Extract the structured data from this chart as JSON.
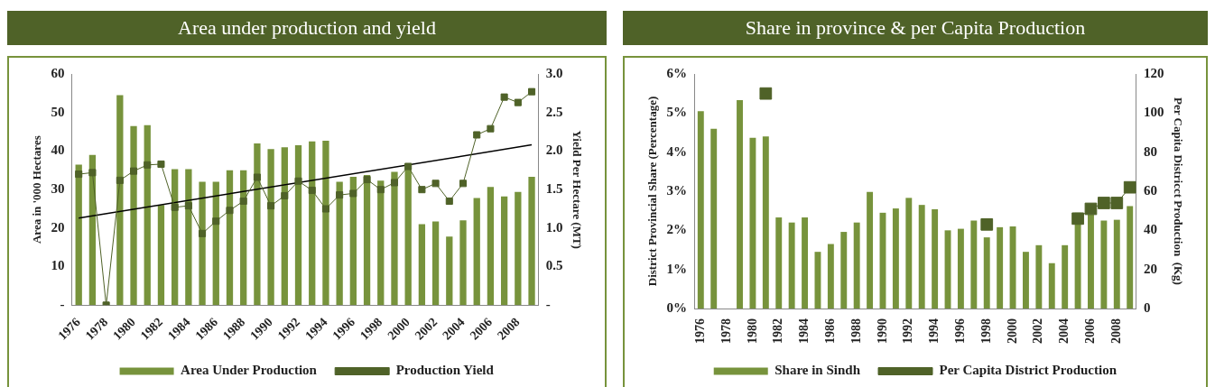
{
  "chart_data": [
    {
      "type": "bar",
      "title": "Area under production and yield",
      "ylabel": "Area in '000 Hectares",
      "y2label": "Yield Per Hectare (MT)",
      "categories": [
        "1976",
        null,
        "1978",
        null,
        "1980",
        null,
        "1982",
        null,
        "1984",
        null,
        "1986",
        null,
        "1988",
        null,
        "1990",
        null,
        "1992",
        null,
        "1994",
        null,
        "1996",
        null,
        "1998",
        null,
        "2000",
        null,
        "2002",
        null,
        "2004",
        null,
        "2006",
        null,
        "2008",
        null
      ],
      "series": [
        {
          "name": "Area Under Production",
          "color": "#77933c",
          "values": [
            36.5,
            39,
            null,
            54.5,
            46.5,
            46.7,
            26,
            35.3,
            35.3,
            32,
            32,
            35,
            35,
            42,
            40.5,
            41,
            41.5,
            42.5,
            42.7,
            32,
            33.3,
            33.8,
            32.3,
            34.6,
            35.5,
            21,
            21.7,
            17.8,
            22,
            27.8,
            30.7,
            28.2,
            29.4,
            33.3
          ]
        },
        {
          "name": "Production Yield",
          "type": "line",
          "axis": "y2",
          "color": "#4f6228",
          "marker": "square",
          "values": [
            1.7,
            1.72,
            0,
            1.62,
            1.74,
            1.82,
            1.83,
            1.27,
            1.29,
            0.93,
            1.09,
            1.23,
            1.35,
            1.66,
            1.29,
            1.42,
            1.61,
            1.49,
            1.25,
            1.43,
            1.45,
            1.63,
            1.5,
            1.59,
            1.8,
            1.5,
            1.58,
            1.35,
            1.58,
            2.21,
            2.29,
            2.7,
            2.63,
            2.77
          ]
        },
        {
          "type": "line",
          "axis": "y2",
          "color": "#000000",
          "marker": "none",
          "values": [
            1.13,
            null,
            null,
            null,
            null,
            null,
            null,
            null,
            null,
            null,
            null,
            null,
            null,
            null,
            null,
            null,
            null,
            null,
            null,
            null,
            null,
            null,
            null,
            null,
            null,
            null,
            null,
            null,
            null,
            null,
            null,
            null,
            null,
            2.08
          ]
        }
      ],
      "ylim": [
        0,
        60
      ],
      "yticks": [
        {
          "value": 0,
          "label": "-"
        },
        10,
        20,
        30,
        40,
        50,
        60
      ],
      "y2lim": [
        0,
        3
      ],
      "y2ticks": [
        {
          "value": 0,
          "label": "-"
        },
        0.5,
        {
          "value": 1,
          "label": "1.0"
        },
        1.5,
        {
          "value": 2,
          "label": "2.0"
        },
        2.5,
        {
          "value": 3,
          "label": "3.0"
        }
      ],
      "legend": "bottom",
      "grid": false
    },
    {
      "type": "bar",
      "title": "Share in province & per Capita Production",
      "ylabel": "District Provincial Share (Percentage)",
      "y2label": "Per Capita Districct Production  (Kg)",
      "categories": [
        "1976",
        null,
        "1978",
        null,
        "1980",
        null,
        "1982",
        null,
        "1984",
        null,
        "1986",
        null,
        "1988",
        null,
        "1990",
        null,
        "1992",
        null,
        "1994",
        null,
        "1996",
        null,
        "1998",
        null,
        "2000",
        null,
        "2002",
        null,
        "2004",
        null,
        "2006",
        null,
        "2008",
        null
      ],
      "series": [
        {
          "name": "Share in Sindh",
          "color": "#77933c",
          "values": [
            5.05,
            4.6,
            null,
            5.33,
            4.37,
            4.4,
            2.33,
            2.2,
            2.33,
            1.45,
            1.65,
            1.96,
            2.2,
            2.98,
            2.45,
            2.56,
            2.83,
            2.65,
            2.54,
            2.0,
            2.04,
            2.25,
            1.82,
            2.08,
            2.1,
            1.45,
            1.62,
            1.16,
            1.62,
            2.45,
            2.4,
            2.25,
            2.27,
            2.62
          ]
        },
        {
          "name": "Per Capita District Production",
          "type": "line",
          "axis": "y2",
          "color": "#4f6228",
          "marker": "square",
          "values": [
            null,
            null,
            null,
            null,
            null,
            110,
            null,
            null,
            null,
            null,
            null,
            null,
            null,
            null,
            null,
            null,
            null,
            null,
            null,
            null,
            null,
            null,
            43,
            null,
            null,
            null,
            null,
            null,
            null,
            46,
            51,
            54,
            54,
            62
          ]
        }
      ],
      "ylim": [
        0,
        6
      ],
      "yticks": [
        {
          "value": 0,
          "label": "0%"
        },
        {
          "value": 1,
          "label": "1%"
        },
        {
          "value": 2,
          "label": "2%"
        },
        {
          "value": 3,
          "label": "3%"
        },
        {
          "value": 4,
          "label": "4%"
        },
        {
          "value": 5,
          "label": "5%"
        },
        {
          "value": 6,
          "label": "6%"
        }
      ],
      "y2lim": [
        0,
        120
      ],
      "y2ticks": [
        0,
        20,
        40,
        60,
        80,
        100,
        120
      ],
      "legend": "bottom",
      "grid": false
    }
  ]
}
